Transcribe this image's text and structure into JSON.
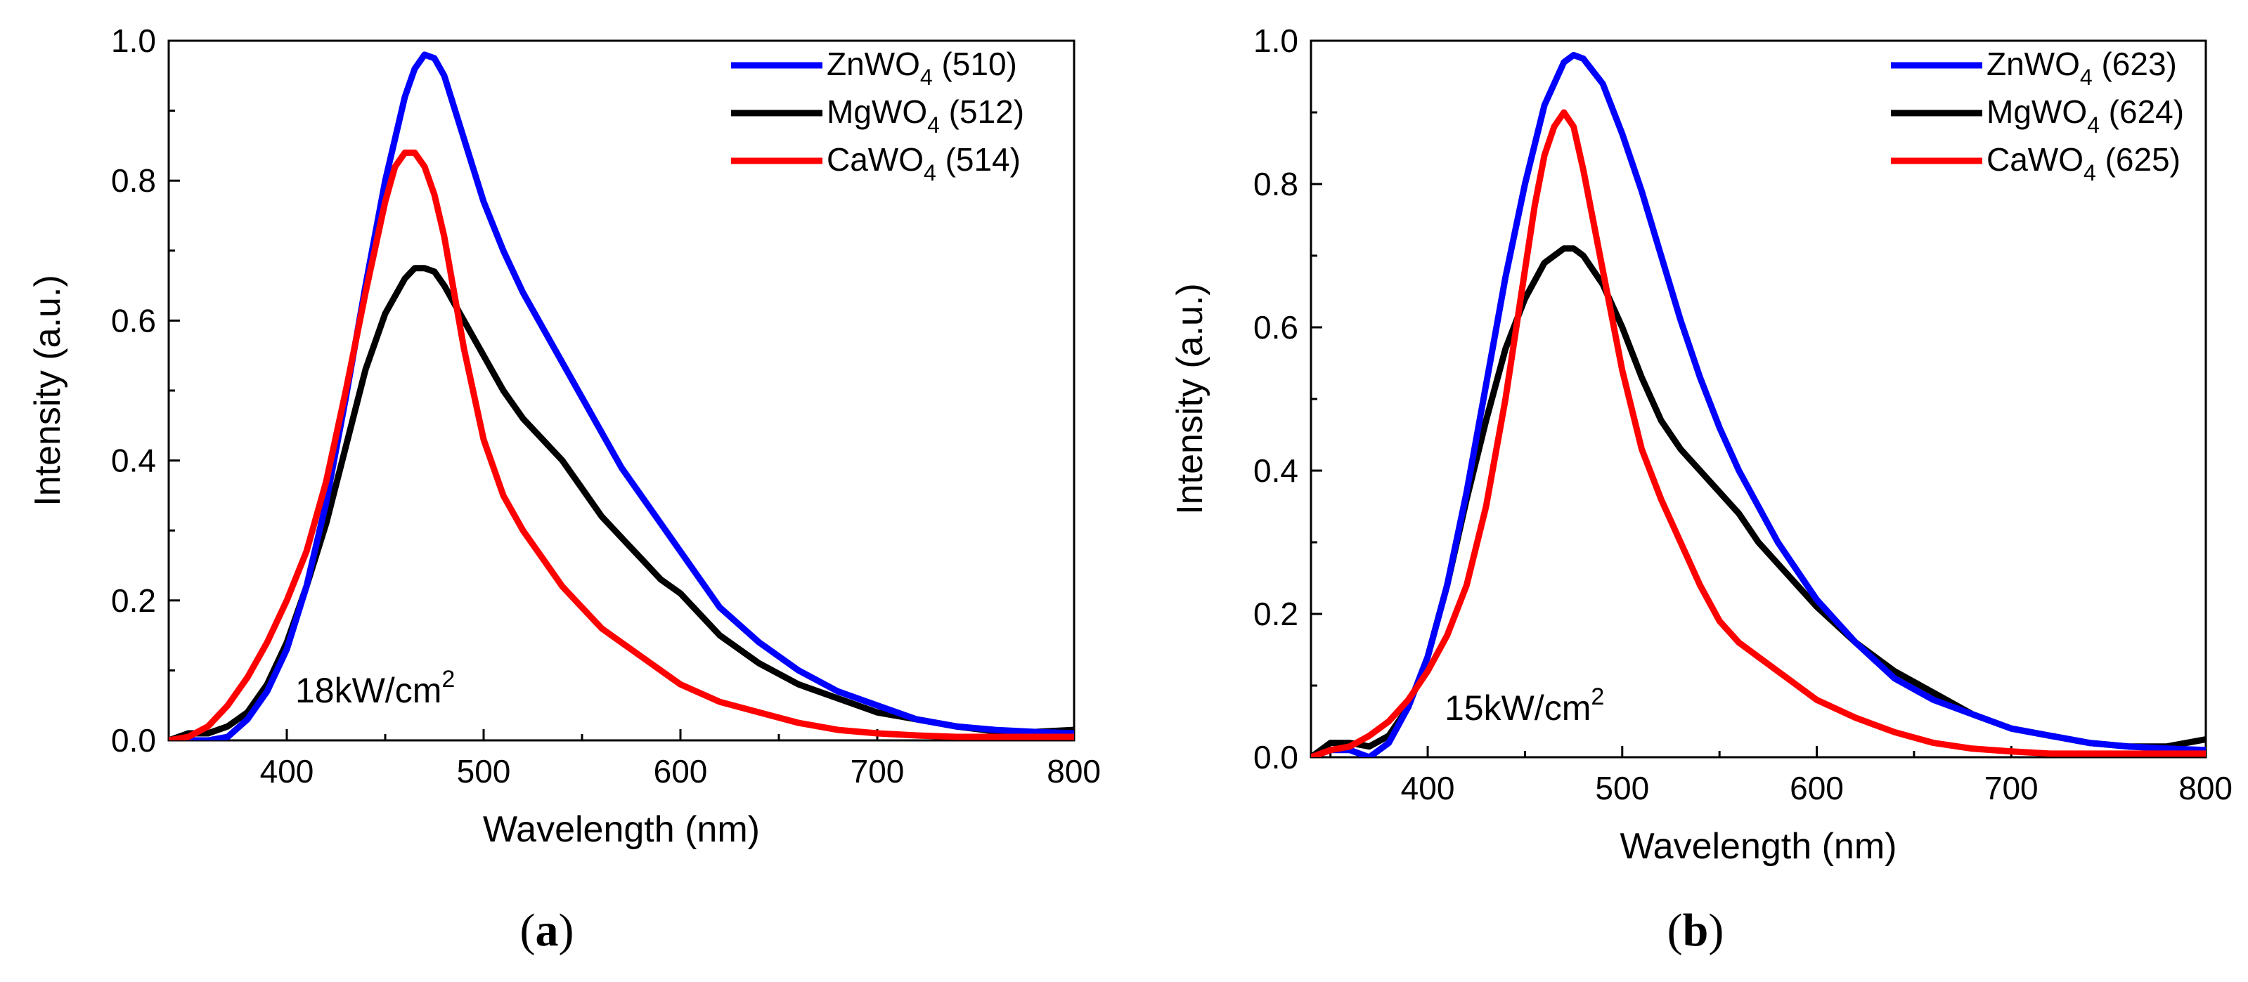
{
  "chart_data": [
    {
      "type": "line",
      "panel_label": "a",
      "xlabel": "Wavelength (nm)",
      "ylabel": "Intensity (a.u.)",
      "xlim": [
        340,
        800
      ],
      "ylim": [
        0,
        1.0
      ],
      "xticks": [
        400,
        500,
        600,
        700,
        800
      ],
      "yticks": [
        0.0,
        0.2,
        0.4,
        0.6,
        0.8,
        1.0
      ],
      "ytick_labels": [
        "0.0",
        "0.2",
        "0.4",
        "0.6",
        "0.8",
        "1.0"
      ],
      "legend_position": "top-right",
      "annotation": {
        "main": "18kW/cm",
        "sup": "2"
      },
      "series": [
        {
          "name": "ZnWO4 (510)",
          "label_parts": {
            "base": "ZnWO",
            "sub": "4",
            "suffix": " (510)"
          },
          "color": "#0000FF",
          "x": [
            340,
            360,
            370,
            380,
            390,
            400,
            410,
            420,
            430,
            440,
            450,
            460,
            465,
            470,
            475,
            480,
            490,
            500,
            510,
            520,
            530,
            540,
            550,
            560,
            570,
            580,
            590,
            600,
            620,
            640,
            660,
            680,
            700,
            720,
            740,
            760,
            780,
            800
          ],
          "y": [
            0.0,
            0.0,
            0.005,
            0.03,
            0.07,
            0.13,
            0.22,
            0.34,
            0.49,
            0.65,
            0.8,
            0.92,
            0.96,
            0.98,
            0.975,
            0.95,
            0.86,
            0.77,
            0.7,
            0.64,
            0.59,
            0.54,
            0.49,
            0.44,
            0.39,
            0.35,
            0.31,
            0.27,
            0.19,
            0.14,
            0.1,
            0.07,
            0.05,
            0.03,
            0.02,
            0.015,
            0.012,
            0.01
          ]
        },
        {
          "name": "MgWO4 (512)",
          "label_parts": {
            "base": "MgWO",
            "sub": "4",
            "suffix": " (512)"
          },
          "color": "#000000",
          "x": [
            340,
            350,
            360,
            370,
            380,
            390,
            400,
            410,
            420,
            430,
            440,
            450,
            460,
            465,
            470,
            475,
            480,
            490,
            500,
            510,
            520,
            530,
            540,
            550,
            560,
            570,
            580,
            590,
            600,
            620,
            640,
            660,
            680,
            700,
            720,
            740,
            760,
            780,
            800
          ],
          "y": [
            0.0,
            0.01,
            0.01,
            0.02,
            0.04,
            0.08,
            0.14,
            0.22,
            0.31,
            0.42,
            0.53,
            0.61,
            0.66,
            0.675,
            0.675,
            0.67,
            0.65,
            0.6,
            0.55,
            0.5,
            0.46,
            0.43,
            0.4,
            0.36,
            0.32,
            0.29,
            0.26,
            0.23,
            0.21,
            0.15,
            0.11,
            0.08,
            0.06,
            0.04,
            0.03,
            0.02,
            0.013,
            0.012,
            0.015
          ]
        },
        {
          "name": "CaWO4 (514)",
          "label_parts": {
            "base": "CaWO",
            "sub": "4",
            "suffix": " (514)"
          },
          "color": "#FF0000",
          "x": [
            340,
            350,
            360,
            370,
            380,
            390,
            400,
            410,
            420,
            430,
            440,
            450,
            455,
            460,
            465,
            470,
            475,
            480,
            490,
            500,
            510,
            520,
            530,
            540,
            550,
            560,
            570,
            580,
            590,
            600,
            620,
            640,
            660,
            680,
            700,
            720,
            740,
            760,
            780,
            800
          ],
          "y": [
            0.0,
            0.005,
            0.02,
            0.05,
            0.09,
            0.14,
            0.2,
            0.27,
            0.37,
            0.5,
            0.64,
            0.77,
            0.82,
            0.84,
            0.84,
            0.82,
            0.78,
            0.72,
            0.56,
            0.43,
            0.35,
            0.3,
            0.26,
            0.22,
            0.19,
            0.16,
            0.14,
            0.12,
            0.1,
            0.08,
            0.055,
            0.04,
            0.025,
            0.015,
            0.01,
            0.007,
            0.005,
            0.005,
            0.005,
            0.005
          ]
        }
      ]
    },
    {
      "type": "line",
      "panel_label": "b",
      "xlabel": "Wavelength (nm)",
      "ylabel": "Intensity (a.u.)",
      "xlim": [
        340,
        800
      ],
      "ylim": [
        0,
        1.0
      ],
      "xticks": [
        400,
        500,
        600,
        700,
        800
      ],
      "yticks": [
        0.0,
        0.2,
        0.4,
        0.6,
        0.8,
        1.0
      ],
      "ytick_labels": [
        "0.0",
        "0.2",
        "0.4",
        "0.6",
        "0.8",
        "1.0"
      ],
      "legend_position": "top-right",
      "annotation": {
        "main": "15kW/cm",
        "sup": "2"
      },
      "series": [
        {
          "name": "ZnWO4 (623)",
          "label_parts": {
            "base": "ZnWO",
            "sub": "4",
            "suffix": " (623)"
          },
          "color": "#0000FF",
          "x": [
            340,
            350,
            360,
            370,
            380,
            390,
            400,
            410,
            420,
            430,
            440,
            450,
            460,
            470,
            475,
            480,
            490,
            500,
            510,
            520,
            530,
            540,
            550,
            560,
            570,
            580,
            590,
            600,
            620,
            640,
            660,
            680,
            700,
            720,
            740,
            760,
            780,
            800
          ],
          "y": [
            0.0,
            0.01,
            0.01,
            0.0,
            0.02,
            0.07,
            0.14,
            0.24,
            0.37,
            0.52,
            0.67,
            0.8,
            0.91,
            0.97,
            0.98,
            0.975,
            0.94,
            0.87,
            0.79,
            0.7,
            0.61,
            0.53,
            0.46,
            0.4,
            0.35,
            0.3,
            0.26,
            0.22,
            0.16,
            0.11,
            0.08,
            0.06,
            0.04,
            0.03,
            0.02,
            0.015,
            0.012,
            0.01
          ]
        },
        {
          "name": "MgWO4 (624)",
          "label_parts": {
            "base": "MgWO",
            "sub": "4",
            "suffix": " (624)"
          },
          "color": "#000000",
          "x": [
            340,
            350,
            360,
            370,
            380,
            390,
            400,
            410,
            420,
            430,
            440,
            450,
            460,
            470,
            475,
            480,
            490,
            500,
            510,
            520,
            530,
            540,
            550,
            560,
            570,
            580,
            590,
            600,
            620,
            640,
            660,
            680,
            700,
            720,
            740,
            760,
            780,
            800
          ],
          "y": [
            0.0,
            0.02,
            0.02,
            0.015,
            0.03,
            0.07,
            0.14,
            0.24,
            0.36,
            0.47,
            0.57,
            0.64,
            0.69,
            0.71,
            0.71,
            0.7,
            0.66,
            0.6,
            0.53,
            0.47,
            0.43,
            0.4,
            0.37,
            0.34,
            0.3,
            0.27,
            0.24,
            0.21,
            0.16,
            0.12,
            0.09,
            0.06,
            0.04,
            0.03,
            0.02,
            0.015,
            0.015,
            0.025
          ]
        },
        {
          "name": "CaWO4 (625)",
          "label_parts": {
            "base": "CaWO",
            "sub": "4",
            "suffix": " (625)"
          },
          "color": "#FF0000",
          "x": [
            340,
            350,
            360,
            370,
            380,
            390,
            400,
            410,
            420,
            430,
            440,
            450,
            455,
            460,
            465,
            470,
            475,
            480,
            490,
            500,
            510,
            520,
            530,
            540,
            550,
            560,
            570,
            580,
            600,
            620,
            640,
            660,
            680,
            700,
            720,
            740,
            760,
            780,
            800
          ],
          "y": [
            0.0,
            0.01,
            0.015,
            0.03,
            0.05,
            0.08,
            0.12,
            0.17,
            0.24,
            0.35,
            0.5,
            0.68,
            0.77,
            0.84,
            0.88,
            0.9,
            0.88,
            0.82,
            0.68,
            0.54,
            0.43,
            0.36,
            0.3,
            0.24,
            0.19,
            0.16,
            0.14,
            0.12,
            0.08,
            0.055,
            0.035,
            0.02,
            0.012,
            0.008,
            0.005,
            0.005,
            0.005,
            0.005,
            0.005
          ]
        }
      ]
    }
  ]
}
